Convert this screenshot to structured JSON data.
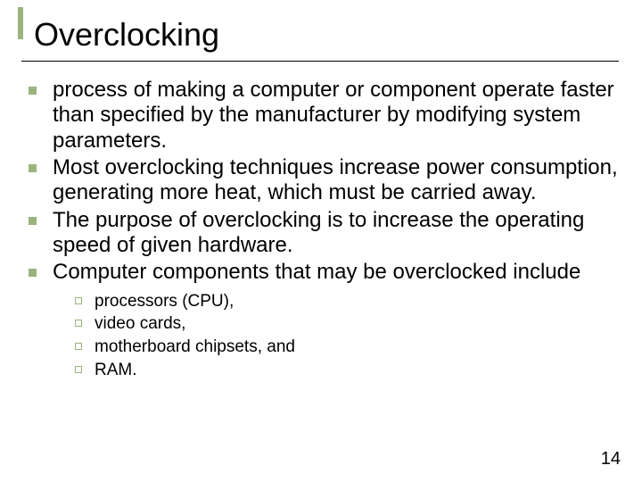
{
  "title": "Overclocking",
  "accent_color": "#9ab47d",
  "text_color": "#000000",
  "background_color": "#ffffff",
  "title_fontsize": 36,
  "body_fontsize": 24,
  "sub_fontsize": 19,
  "bullets": [
    "process of making a computer or component operate faster than specified by the manufacturer by modifying system parameters.",
    "Most overclocking techniques increase power consumption, generating more heat, which must be carried away.",
    "The purpose of overclocking is to increase the operating speed of given hardware.",
    "Computer components that may be overclocked include"
  ],
  "sub_bullets": [
    "processors (CPU),",
    "video cards,",
    "motherboard chipsets, and",
    "RAM."
  ],
  "page_number": "14"
}
